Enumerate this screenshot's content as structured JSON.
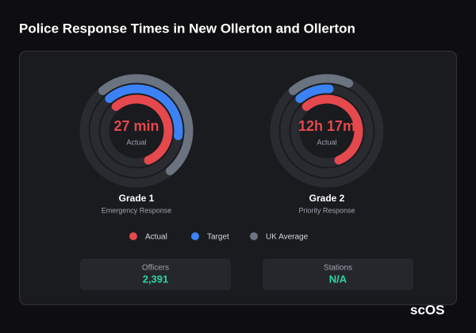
{
  "title": "Police Response Times in New Ollerton and Ollerton",
  "legend": [
    {
      "name": "Actual",
      "color": "#e5484d"
    },
    {
      "name": "Target",
      "color": "#3b82f6"
    },
    {
      "name": "UK Average",
      "color": "#6b7280"
    }
  ],
  "gauges": [
    {
      "value_label": "27 min",
      "sublabel": "Actual",
      "name": "Grade 1",
      "description": "Emergency Response",
      "rings": [
        55,
        38,
        50
      ]
    },
    {
      "value_label": "12h 17m",
      "sublabel": "Actual",
      "name": "Grade 2",
      "description": "Priority Response",
      "rings": [
        55,
        12,
        18
      ]
    }
  ],
  "stats": [
    {
      "label": "Officers",
      "value": "2,391"
    },
    {
      "label": "Stations",
      "value": "N/A"
    }
  ],
  "brand": "scOS"
}
